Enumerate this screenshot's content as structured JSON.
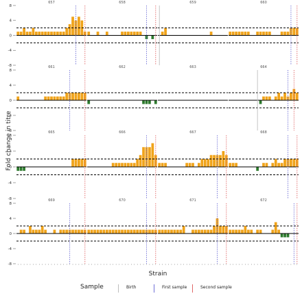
{
  "chart_data": {
    "type": "bar",
    "xlabel": "Strain",
    "ylabel": "Fold change in titre",
    "ylim": [
      -8,
      8
    ],
    "yticks": [
      -8,
      -4,
      0,
      4,
      8
    ],
    "threshold": 2,
    "grid": false,
    "legend": {
      "title": "Sample",
      "placement": "bottom",
      "items": [
        {
          "label": "Birth",
          "color": "#bdbdbd"
        },
        {
          "label": "First sample",
          "color": "#6f6fd6"
        },
        {
          "label": "Second sample",
          "color": "#e06666"
        }
      ]
    },
    "colors": {
      "positive": "#f0a31a",
      "negative": "#2d7a2d",
      "background": "#ffffff"
    },
    "strain_count": 23,
    "panels": [
      {
        "id": "657",
        "birth": null,
        "first": 19.5,
        "second": 22.5,
        "values": [
          1,
          1,
          2,
          1,
          1,
          2,
          1,
          1,
          1,
          1,
          1,
          1,
          1,
          1,
          1,
          1,
          2,
          3,
          5,
          4,
          5,
          4,
          1
        ]
      },
      {
        "id": "658",
        "birth": null,
        "first": 19.5,
        "second": 22.5,
        "values": [
          1,
          0,
          0,
          1,
          0,
          0,
          1,
          0,
          0,
          0,
          0,
          1,
          1,
          1,
          1,
          1,
          1,
          1,
          0,
          -1,
          0,
          -1,
          0
        ]
      },
      {
        "id": "659",
        "birth": 0.5,
        "first": null,
        "second": null,
        "values": [
          0,
          1,
          2,
          0,
          0,
          0,
          0,
          0,
          0,
          0,
          0,
          0,
          0,
          0,
          0,
          0,
          0,
          1,
          0,
          0,
          0,
          0,
          0
        ]
      },
      {
        "id": "660",
        "birth": null,
        "first": 20.5,
        "second": 22.5,
        "values": [
          1,
          1,
          1,
          1,
          1,
          1,
          1,
          0,
          0,
          1,
          1,
          1,
          1,
          1,
          0,
          0,
          0,
          1,
          1,
          1,
          2,
          2,
          2
        ]
      },
      {
        "id": "661",
        "birth": null,
        "first": 17.5,
        "second": 22.5,
        "values": [
          1,
          0,
          0,
          0,
          0,
          0,
          0,
          0,
          0,
          1,
          1,
          1,
          1,
          1,
          1,
          1,
          2,
          2,
          2,
          2,
          2,
          2,
          2
        ]
      },
      {
        "id": "662",
        "birth": null,
        "first": null,
        "second": null,
        "values": [
          -1,
          0,
          0,
          0,
          0,
          0,
          0,
          0,
          0,
          0,
          0,
          0,
          0,
          0,
          0,
          0,
          0,
          0,
          -1,
          -1,
          -1,
          0,
          -1
        ]
      },
      {
        "id": "663",
        "birth": null,
        "first": null,
        "second": null,
        "values": [
          0,
          0,
          0,
          0,
          0,
          0,
          0,
          0,
          0,
          0,
          0,
          0,
          0,
          0,
          0,
          0,
          0,
          0,
          0,
          0,
          0,
          0,
          0
        ]
      },
      {
        "id": "664",
        "birth": 9.5,
        "first": 19.5,
        "second": 21.5,
        "values": [
          0,
          0,
          0,
          0,
          0,
          0,
          0,
          0,
          0,
          0,
          -1,
          1,
          1,
          1,
          0,
          1,
          2,
          1,
          2,
          1,
          2,
          3,
          2
        ]
      },
      {
        "id": "665",
        "birth": null,
        "first": null,
        "second": 22.5,
        "values": [
          -1,
          -1,
          -1,
          0,
          0,
          0,
          0,
          0,
          0,
          0,
          0,
          0,
          0,
          0,
          0,
          0,
          0,
          0,
          2,
          2,
          2,
          2,
          2
        ]
      },
      {
        "id": "666",
        "birth": null,
        "first": 19.5,
        "second": 22.5,
        "values": [
          0,
          0,
          0,
          0,
          0,
          0,
          0,
          0,
          1,
          1,
          1,
          1,
          1,
          1,
          1,
          1,
          2,
          3,
          5,
          5,
          5,
          6,
          3
        ]
      },
      {
        "id": "667",
        "birth": null,
        "first": 19.5,
        "second": 22.5,
        "values": [
          1,
          1,
          1,
          0,
          0,
          0,
          0,
          0,
          0,
          1,
          1,
          1,
          0,
          1,
          2,
          2,
          2,
          3,
          3,
          3,
          3,
          4,
          3
        ]
      },
      {
        "id": "668",
        "birth": null,
        "first": 19.5,
        "second": 22.5,
        "values": [
          1,
          1,
          1,
          0,
          0,
          0,
          0,
          0,
          0,
          -1,
          0,
          1,
          1,
          0,
          1,
          2,
          1,
          1,
          2,
          2,
          2,
          2,
          2
        ]
      },
      {
        "id": "669",
        "birth": null,
        "first": 17.5,
        "second": 22.5,
        "values": [
          0,
          1,
          1,
          0,
          2,
          1,
          1,
          1,
          2,
          1,
          0,
          0,
          1,
          0,
          1,
          1,
          1,
          1,
          1,
          1,
          1,
          1,
          1
        ]
      },
      {
        "id": "670",
        "birth": null,
        "first": 19.5,
        "second": 22.5,
        "values": [
          1,
          1,
          1,
          1,
          1,
          1,
          1,
          1,
          1,
          1,
          1,
          1,
          1,
          1,
          1,
          1,
          1,
          1,
          1,
          1,
          1,
          1,
          1
        ]
      },
      {
        "id": "671",
        "birth": null,
        "first": 19.5,
        "second": 22.5,
        "values": [
          1,
          1,
          1,
          1,
          1,
          1,
          1,
          1,
          2,
          0,
          0,
          1,
          1,
          1,
          1,
          1,
          1,
          1,
          2,
          4,
          2,
          2,
          2
        ]
      },
      {
        "id": "672",
        "birth": null,
        "first": 21.5,
        "second": 22.5,
        "values": [
          1,
          1,
          1,
          1,
          1,
          2,
          1,
          1,
          0,
          1,
          1,
          0,
          0,
          0,
          1,
          3,
          1,
          -1,
          -1,
          -1,
          0,
          0,
          0
        ]
      }
    ]
  }
}
